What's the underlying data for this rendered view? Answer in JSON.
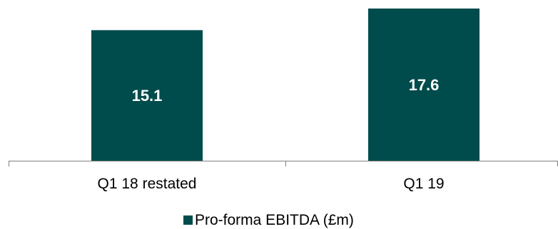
{
  "chart_data": {
    "type": "bar",
    "categories": [
      "Q1 18 restated",
      "Q1 19"
    ],
    "series": [
      {
        "name": "Pro-forma EBITDA (£m)",
        "values": [
          15.1,
          17.6
        ],
        "color": "#004b4b"
      }
    ],
    "data_labels": [
      "15.1",
      "17.6"
    ],
    "data_label_color": "#ffffff",
    "legend_position": "bottom",
    "grid": false,
    "ylim": [
      0,
      17.6
    ]
  }
}
